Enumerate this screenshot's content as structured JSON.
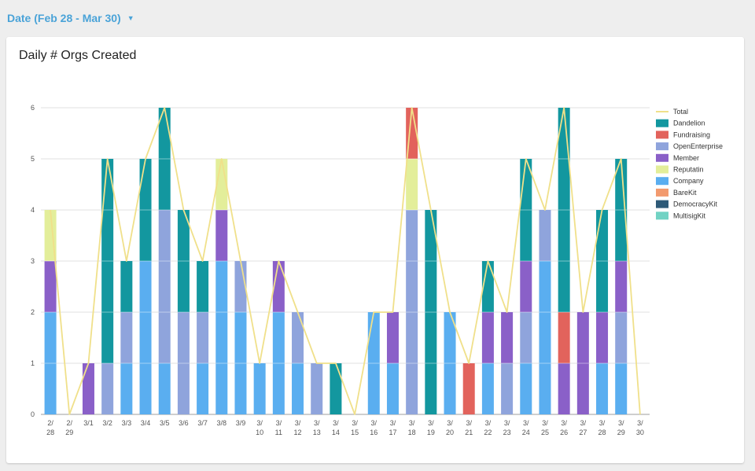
{
  "filter": {
    "label": "Date (Feb 28 - Mar 30)",
    "caret": "▼",
    "caret_icon": "caret-down-icon"
  },
  "card": {
    "title": "Daily # Orgs Created"
  },
  "chart_data": {
    "type": "bar",
    "stacked": true,
    "title": "Daily # Orgs Created",
    "xlabel": "",
    "ylabel": "",
    "ylim": [
      0,
      6
    ],
    "yticks": [
      0,
      1,
      2,
      3,
      4,
      5,
      6
    ],
    "grid": true,
    "legend_position": "right",
    "categories": [
      [
        "2/",
        "28"
      ],
      [
        "2/",
        "29"
      ],
      [
        "3/1"
      ],
      [
        "3/2"
      ],
      [
        "3/3"
      ],
      [
        "3/4"
      ],
      [
        "3/5"
      ],
      [
        "3/6"
      ],
      [
        "3/7"
      ],
      [
        "3/8"
      ],
      [
        "3/9"
      ],
      [
        "3/",
        "10"
      ],
      [
        "3/",
        "11"
      ],
      [
        "3/",
        "12"
      ],
      [
        "3/",
        "13"
      ],
      [
        "3/",
        "14"
      ],
      [
        "3/",
        "15"
      ],
      [
        "3/",
        "16"
      ],
      [
        "3/",
        "17"
      ],
      [
        "3/",
        "18"
      ],
      [
        "3/",
        "19"
      ],
      [
        "3/",
        "20"
      ],
      [
        "3/",
        "21"
      ],
      [
        "3/",
        "22"
      ],
      [
        "3/",
        "23"
      ],
      [
        "3/",
        "24"
      ],
      [
        "3/",
        "25"
      ],
      [
        "3/",
        "26"
      ],
      [
        "3/",
        "27"
      ],
      [
        "3/",
        "28"
      ],
      [
        "3/",
        "29"
      ],
      [
        "3/",
        "30"
      ]
    ],
    "series": [
      {
        "name": "Company",
        "color": "#5aaef0",
        "values": [
          2,
          0,
          0,
          0,
          1,
          3,
          1,
          0,
          1,
          3,
          2,
          1,
          2,
          1,
          0,
          0,
          0,
          2,
          1,
          0,
          0,
          2,
          0,
          1,
          0,
          1,
          3,
          0,
          0,
          1,
          1,
          0
        ]
      },
      {
        "name": "OpenEnterprise",
        "color": "#8fa4dc",
        "values": [
          0,
          0,
          0,
          1,
          1,
          0,
          3,
          2,
          1,
          0,
          1,
          0,
          0,
          1,
          1,
          0,
          0,
          0,
          0,
          4,
          0,
          0,
          0,
          0,
          1,
          1,
          1,
          0,
          0,
          0,
          1,
          0
        ]
      },
      {
        "name": "Member",
        "color": "#8a60c8",
        "values": [
          1,
          0,
          1,
          0,
          0,
          0,
          0,
          0,
          0,
          1,
          0,
          0,
          1,
          0,
          0,
          0,
          0,
          0,
          1,
          0,
          0,
          0,
          0,
          1,
          1,
          1,
          0,
          1,
          2,
          1,
          1,
          0
        ]
      },
      {
        "name": "Reputatin",
        "color": "#e3ee9a",
        "values": [
          1,
          0,
          0,
          0,
          0,
          0,
          0,
          0,
          0,
          1,
          0,
          0,
          0,
          0,
          0,
          0,
          0,
          0,
          0,
          1,
          0,
          0,
          0,
          0,
          0,
          0,
          0,
          0,
          0,
          0,
          0,
          0
        ]
      },
      {
        "name": "Fundraising",
        "color": "#e2635c",
        "values": [
          0,
          0,
          0,
          0,
          0,
          0,
          0,
          0,
          0,
          0,
          0,
          0,
          0,
          0,
          0,
          0,
          0,
          0,
          0,
          1,
          0,
          0,
          1,
          0,
          0,
          0,
          0,
          1,
          0,
          0,
          0,
          0
        ]
      },
      {
        "name": "Dandelion",
        "color": "#13979f",
        "values": [
          0,
          0,
          0,
          4,
          1,
          2,
          2,
          2,
          1,
          0,
          0,
          0,
          0,
          0,
          0,
          1,
          0,
          0,
          0,
          0,
          4,
          0,
          0,
          1,
          0,
          2,
          0,
          4,
          0,
          2,
          2,
          0
        ]
      },
      {
        "name": "BareKit",
        "color": "#f29a6e",
        "values": [
          0,
          0,
          0,
          0,
          0,
          0,
          0,
          0,
          0,
          0,
          0,
          0,
          0,
          0,
          0,
          0,
          0,
          0,
          0,
          0,
          0,
          0,
          0,
          0,
          0,
          0,
          0,
          0,
          0,
          0,
          0,
          0
        ]
      },
      {
        "name": "DemocracyKit",
        "color": "#2e5a78",
        "values": [
          0,
          0,
          0,
          0,
          0,
          0,
          0,
          0,
          0,
          0,
          0,
          0,
          0,
          0,
          0,
          0,
          0,
          0,
          0,
          0,
          0,
          0,
          0,
          0,
          0,
          0,
          0,
          0,
          0,
          0,
          0,
          0
        ]
      },
      {
        "name": "MultisigKit",
        "color": "#72d3c4",
        "values": [
          0,
          0,
          0,
          0,
          0,
          0,
          0,
          0,
          0,
          0,
          0,
          0,
          0,
          0,
          0,
          0,
          0,
          0,
          0,
          0,
          0,
          0,
          0,
          0,
          0,
          0,
          0,
          0,
          0,
          0,
          0,
          0
        ]
      }
    ],
    "total": {
      "name": "Total",
      "color": "#f0e08a",
      "values": [
        4,
        0,
        1,
        5,
        3,
        5,
        6,
        4,
        3,
        5,
        3,
        1,
        3,
        2,
        1,
        1,
        0,
        2,
        2,
        6,
        4,
        2,
        1,
        3,
        2,
        5,
        4,
        6,
        2,
        4,
        5,
        0
      ]
    },
    "legend_order": [
      "Total",
      "Dandelion",
      "Fundraising",
      "OpenEnterprise",
      "Member",
      "Reputatin",
      "Company",
      "BareKit",
      "DemocracyKit",
      "MultisigKit"
    ]
  }
}
